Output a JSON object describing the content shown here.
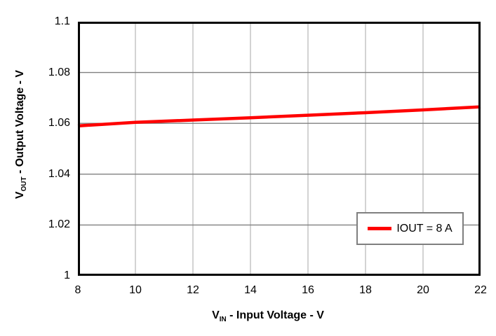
{
  "chart": {
    "x_axis": {
      "symbol": "V",
      "symbol_sub": "IN",
      "label_rest": " - Input Voltage - V",
      "tick_labels": [
        "8",
        "10",
        "12",
        "14",
        "16",
        "18",
        "20",
        "22"
      ]
    },
    "y_axis": {
      "symbol": "V",
      "symbol_sub": "OUT",
      "label_rest": " - Output Voltage - V",
      "tick_labels": [
        "1",
        "1.02",
        "1.04",
        "1.06",
        "1.08",
        "1.1"
      ]
    },
    "legend": {
      "label": "IOUT = 8 A"
    },
    "colors": {
      "line": "#ff0000",
      "h_grid": "#7f7f7f",
      "v_grid": "#c0c0c0",
      "axis_border": "#000000",
      "legend_border": "#7f7f7f",
      "background": "#ffffff"
    }
  },
  "chart_data": {
    "type": "line",
    "title": "",
    "xlabel": "VIN - Input Voltage - V",
    "ylabel": "VOUT - Output Voltage - V",
    "x": [
      8,
      10,
      12,
      14,
      16,
      18,
      20,
      22
    ],
    "series": [
      {
        "name": "IOUT = 8 A",
        "color": "#ff0000",
        "values": [
          1.059,
          1.0604,
          1.0613,
          1.0622,
          1.0632,
          1.0642,
          1.0653,
          1.0665
        ]
      }
    ],
    "xlim": [
      8,
      22
    ],
    "ylim": [
      1,
      1.1
    ],
    "x_ticks": [
      8,
      10,
      12,
      14,
      16,
      18,
      20,
      22
    ],
    "y_ticks": [
      1,
      1.02,
      1.04,
      1.06,
      1.08,
      1.1
    ],
    "grid": true,
    "legend_position": "lower right"
  }
}
